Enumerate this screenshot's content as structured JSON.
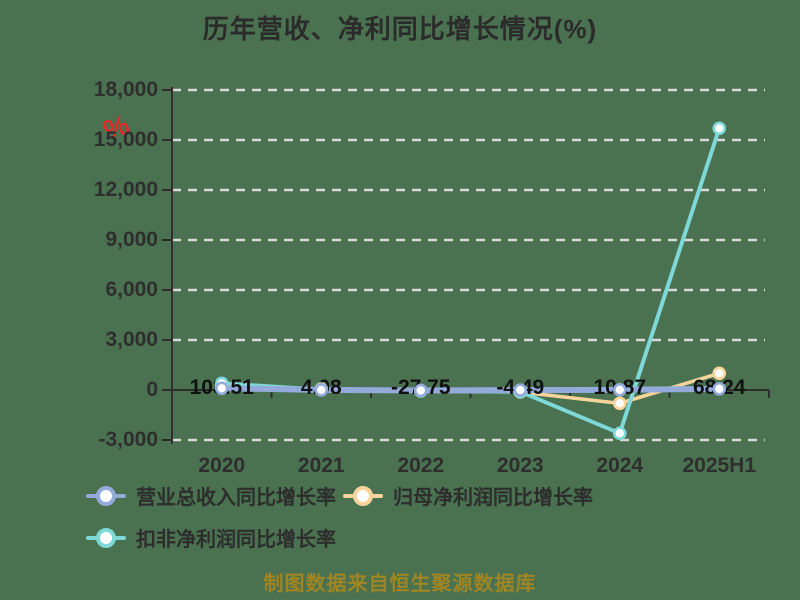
{
  "title": "历年营收、净利同比增长情况(%)",
  "watermark": "%",
  "footer": "制图数据来自恒生聚源数据库",
  "colors": {
    "background": "#4a7150",
    "grid": "#d8d8d8",
    "axis": "#2f2f2f",
    "title_text": "#2b2b2b",
    "tick_text": "#2e2e2e",
    "data_label_text": "#111111",
    "legend_text": "#2d2d2d",
    "footer_text": "#a08524",
    "watermark_red": "#e02b2b",
    "series_revenue": "#94aadb",
    "series_net_profit": "#f9d49b",
    "series_non_gaap": "#7ed8d8"
  },
  "legend": [
    {
      "label": "营业总收入同比增长率",
      "color": "#94aadb"
    },
    {
      "label": "归母净利润同比增长率",
      "color": "#f9d49b"
    },
    {
      "label": "扣非净利润同比增长率",
      "color": "#7ed8d8"
    }
  ],
  "chart_data": {
    "type": "line",
    "title": "历年营收、净利同比增长情况(%)",
    "categories": [
      "2020",
      "2021",
      "2022",
      "2023",
      "2024",
      "2025H1"
    ],
    "series": [
      {
        "name": "营业总收入同比增长率",
        "color": "#94aadb",
        "values": [
          103.51,
          4.08,
          -27.75,
          -4.49,
          10.87,
          68.24
        ]
      },
      {
        "name": "归母净利润同比增长率",
        "color": "#f9d49b",
        "values": [
          250,
          60,
          -60,
          -120,
          -800,
          1000
        ]
      },
      {
        "name": "扣非净利润同比增长率",
        "color": "#7ed8d8",
        "values": [
          400,
          20,
          -60,
          -100,
          -2600,
          15700
        ]
      }
    ],
    "data_labels": [
      "103.51",
      "4.08",
      "-27.75",
      "-4.49",
      "10.87",
      "68.24"
    ],
    "ylim": [
      -3000,
      18000
    ],
    "ytick_step": 3000,
    "yticks": [
      "18,000",
      "15,000",
      "12,000",
      "9,000",
      "6,000",
      "3,000",
      "0",
      "-3,000"
    ],
    "grid": true,
    "legend_position": "bottom"
  }
}
